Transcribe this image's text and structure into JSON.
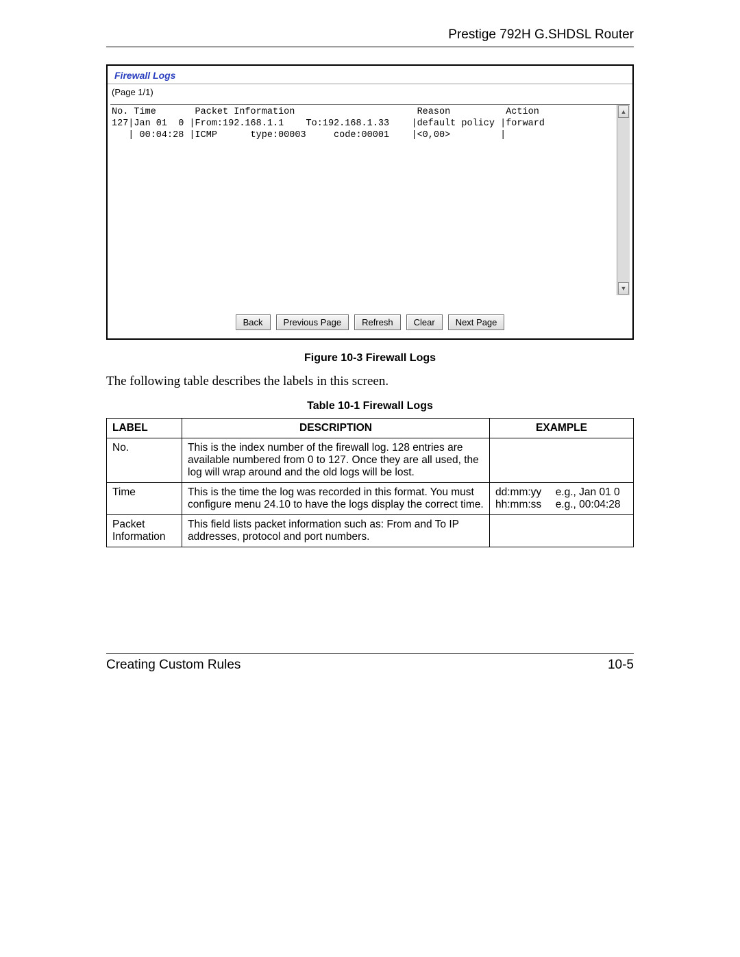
{
  "header": {
    "title": "Prestige 792H G.SHDSL Router"
  },
  "screenshot": {
    "panel_title": "Firewall Logs",
    "page_indicator": "(Page 1/1)",
    "log_line1": "No. Time       Packet Information                      Reason          Action",
    "log_line2": "127|Jan 01  0 |From:192.168.1.1    To:192.168.1.33    |default policy |forward",
    "log_line3": "   | 00:04:28 |ICMP      type:00003     code:00001    |<0,00>         |",
    "buttons": {
      "back": "Back",
      "prev": "Previous Page",
      "refresh": "Refresh",
      "clear": "Clear",
      "next": "Next Page"
    }
  },
  "figure_caption": "Figure 10-3 Firewall Logs",
  "intro_text": "The following table describes the labels in this screen.",
  "table_caption": "Table 10-1 Firewall Logs",
  "table": {
    "headers": {
      "label": "LABEL",
      "description": "DESCRIPTION",
      "example": "EXAMPLE"
    },
    "rows": [
      {
        "label": "No.",
        "description": "This is the index number of the firewall log. 128 entries are available numbered from 0 to 127. Once they are all used, the log will wrap around and the old logs will be lost.",
        "example": ""
      },
      {
        "label": "Time",
        "description": "This is the time the log was recorded in this format. You must configure menu 24.10 to have the logs display the correct time.",
        "example_grid": [
          "dd:mm:yy",
          "e.g., Jan 01 0",
          "hh:mm:ss",
          "e.g., 00:04:28"
        ]
      },
      {
        "label": "Packet Information",
        "description": "This field lists packet information such as: From and To IP addresses, protocol and port numbers.",
        "example": ""
      }
    ]
  },
  "footer": {
    "left": "Creating Custom Rules",
    "right": "10-5"
  }
}
